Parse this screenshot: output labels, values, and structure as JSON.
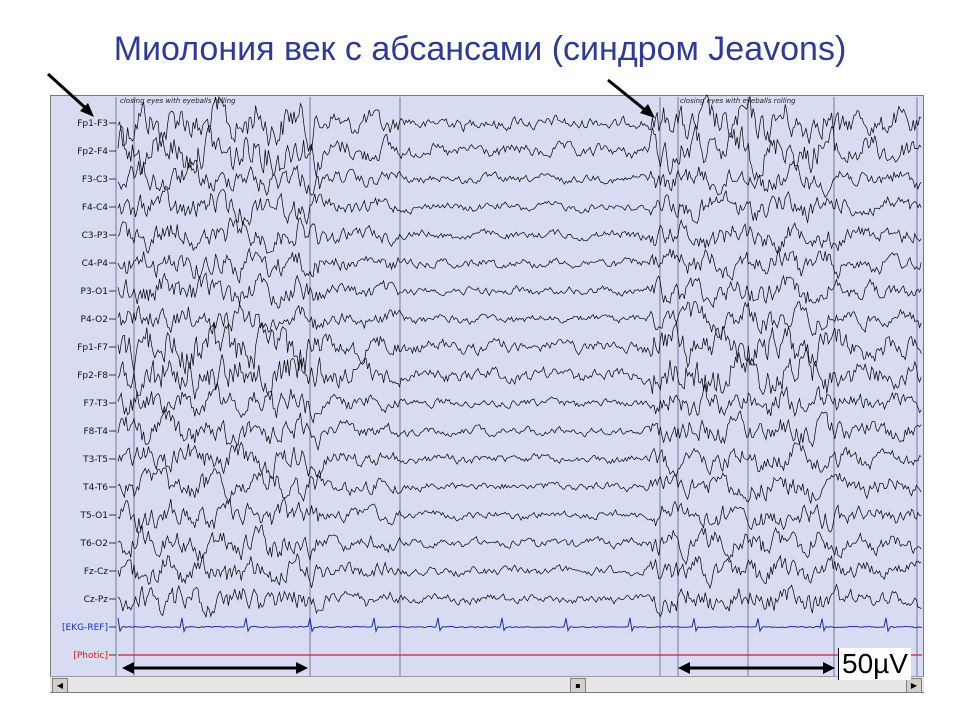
{
  "title": "Миолония век с абсансами (синдром Jeavons)",
  "annotations": {
    "marker_text": "closing eyes with eyeballs rolling",
    "scale_label": "50µV"
  },
  "colors": {
    "title": "#2e3a99",
    "background": "#d8dcf2",
    "trace": "#000000",
    "ekg": "#1a2fa8",
    "photic": "#cc2222",
    "arrows": "#000000"
  },
  "chart_data": {
    "type": "line",
    "title": "Миолония век с абсансами (синдром Jeavons)",
    "channels": [
      "Fp1-F3",
      "Fp2-F4",
      "F3-C3",
      "F4-C4",
      "C3-P3",
      "C4-P4",
      "P3-O1",
      "P4-O2",
      "Fp1-F7",
      "Fp2-F8",
      "F7-T3",
      "F8-T4",
      "T3-T5",
      "T4-T6",
      "T5-O1",
      "T6-O2",
      "Fz-Cz",
      "Cz-Pz",
      "[EKG-REF]",
      "[Photic]"
    ],
    "events": [
      {
        "label": "closing eyes with eyeballs rolling",
        "position": "left"
      },
      {
        "label": "closing eyes with eyeballs rolling",
        "position": "right"
      }
    ],
    "scale": "50µV",
    "grid": true
  }
}
